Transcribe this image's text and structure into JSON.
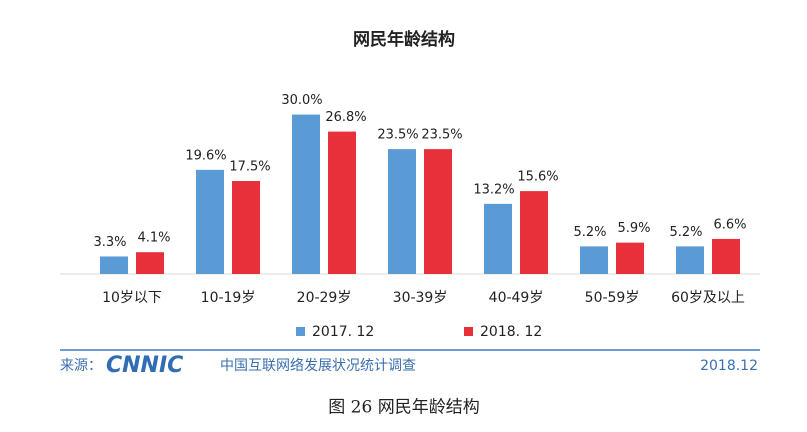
{
  "chart_data": {
    "type": "bar",
    "title": "网民年龄结构",
    "categories": [
      "10岁以下",
      "10-19岁",
      "20-29岁",
      "30-39岁",
      "40-49岁",
      "50-59岁",
      "60岁及以上"
    ],
    "series": [
      {
        "name": "2017. 12",
        "color": "#5b9bd5",
        "values": [
          3.3,
          19.6,
          30.0,
          23.5,
          13.2,
          5.2,
          5.2
        ],
        "value_labels": [
          "3.3%",
          "19.6%",
          "30.0%",
          "23.5%",
          "13.2%",
          "5.2%",
          "5.2%"
        ]
      },
      {
        "name": "2018. 12",
        "color": "#e8303a",
        "values": [
          4.1,
          17.5,
          26.8,
          23.5,
          15.6,
          5.9,
          6.6
        ],
        "value_labels": [
          "4.1%",
          "17.5%",
          "26.8%",
          "23.5%",
          "15.6%",
          "5.9%",
          "6.6%"
        ]
      }
    ],
    "ylim": [
      0,
      35
    ]
  },
  "footer": {
    "source": "来源：",
    "logo": "CNNIC",
    "survey": "中国互联网络发展状况统计调查",
    "date": "2018.12"
  },
  "caption": "图 26    网民年龄结构"
}
